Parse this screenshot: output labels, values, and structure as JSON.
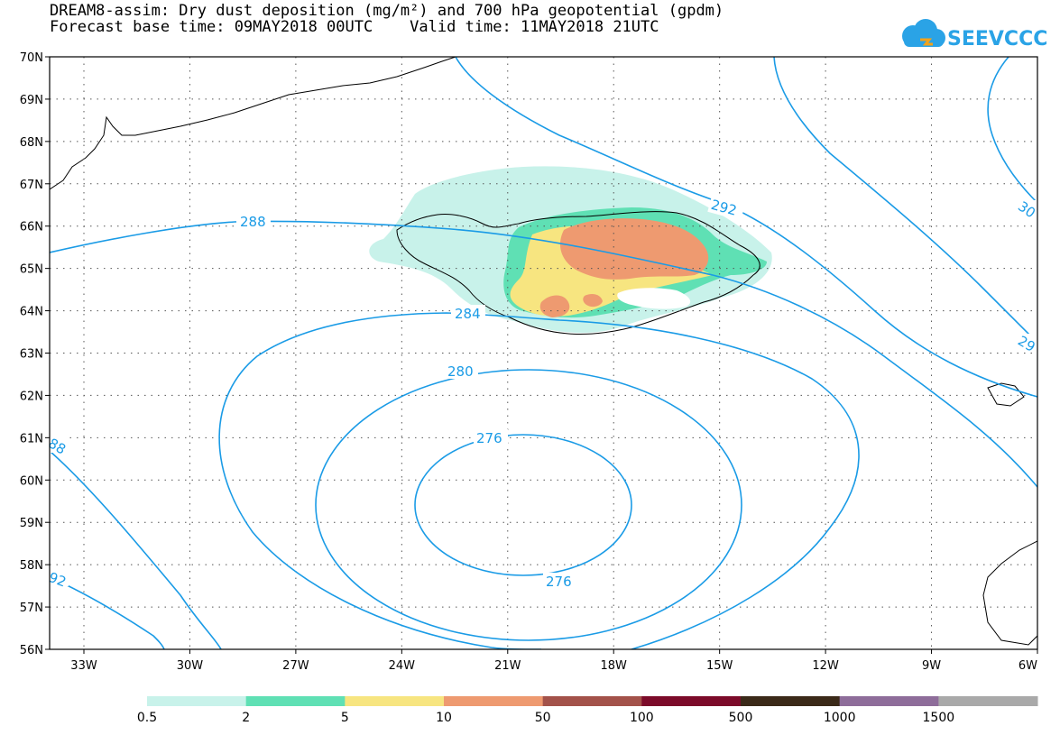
{
  "title_line1": "DREAM8-assim: Dry dust deposition (mg/m²) and 700 hPa geopotential (gpdm)",
  "title_line2": "Forecast base time: 09MAY2018 00UTC    Valid time: 11MAY2018 21UTC",
  "logo_text": "SEEVCCC",
  "colors": {
    "contour": "#1a9be6",
    "grid": "#555555",
    "land_outline": "#000000"
  },
  "lat_labels": [
    "70N",
    "69N",
    "68N",
    "67N",
    "66N",
    "65N",
    "64N",
    "63N",
    "62N",
    "61N",
    "60N",
    "59N",
    "58N",
    "57N",
    "56N"
  ],
  "lon_labels": [
    "33W",
    "30W",
    "27W",
    "24W",
    "21W",
    "18W",
    "15W",
    "12W",
    "9W",
    "6W"
  ],
  "contour_labels": [
    {
      "text": "288",
      "key": "c288a"
    },
    {
      "text": "292",
      "key": "c292a"
    },
    {
      "text": "284",
      "key": "c284"
    },
    {
      "text": "280",
      "key": "c280"
    },
    {
      "text": "276",
      "key": "c276a"
    },
    {
      "text": "276",
      "key": "c276b"
    },
    {
      "text": "88",
      "key": "c288b"
    },
    {
      "text": "92",
      "key": "c292b"
    },
    {
      "text": "30",
      "key": "c300"
    },
    {
      "text": "29",
      "key": "c296"
    }
  ],
  "colorbar": {
    "colors": [
      "#c8f2ea",
      "#5fe0b4",
      "#f7e580",
      "#ee9a70",
      "#a3524a",
      "#7c0b2a",
      "#3b2a19",
      "#8e6d9a",
      "#a9a9a9"
    ],
    "labels": [
      "0.5",
      "2",
      "5",
      "10",
      "50",
      "100",
      "500",
      "1000",
      "1500"
    ]
  }
}
